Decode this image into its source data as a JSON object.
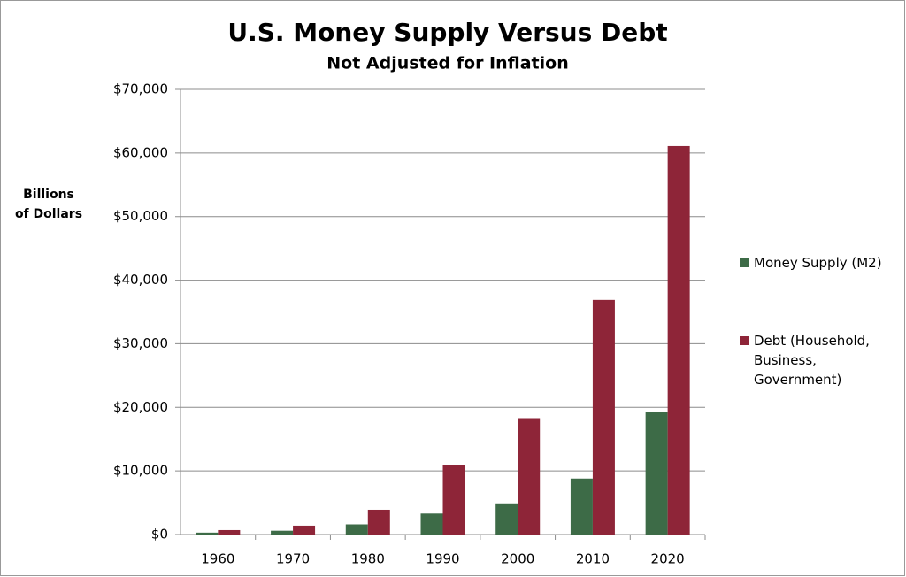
{
  "chart_data": {
    "type": "bar",
    "title": "U.S. Money Supply Versus Debt",
    "subtitle": "Not Adjusted for Inflation",
    "y_label": [
      "Billions",
      "of Dollars"
    ],
    "categories": [
      "1960",
      "1970",
      "1980",
      "1990",
      "2000",
      "2010",
      "2020"
    ],
    "series": [
      {
        "name": "Money Supply (M2)",
        "color": "#3d6b47",
        "values": [
          300,
          600,
          1600,
          3300,
          4900,
          8800,
          19300
        ]
      },
      {
        "name": "Debt (Household, Business, Government)",
        "color": "#8e2538",
        "values": [
          700,
          1400,
          3900,
          10900,
          18300,
          36900,
          61100
        ]
      }
    ],
    "ylim": [
      0,
      70000
    ],
    "yticks": [
      {
        "value": 0,
        "label": "$0"
      },
      {
        "value": 10000,
        "label": "$10,000"
      },
      {
        "value": 20000,
        "label": "$20,000"
      },
      {
        "value": 30000,
        "label": "$30,000"
      },
      {
        "value": 40000,
        "label": "$40,000"
      },
      {
        "value": 50000,
        "label": "$50,000"
      },
      {
        "value": 60000,
        "label": "$60,000"
      },
      {
        "value": 70000,
        "label": "$70,000"
      }
    ],
    "grid": true,
    "legend": "right"
  }
}
